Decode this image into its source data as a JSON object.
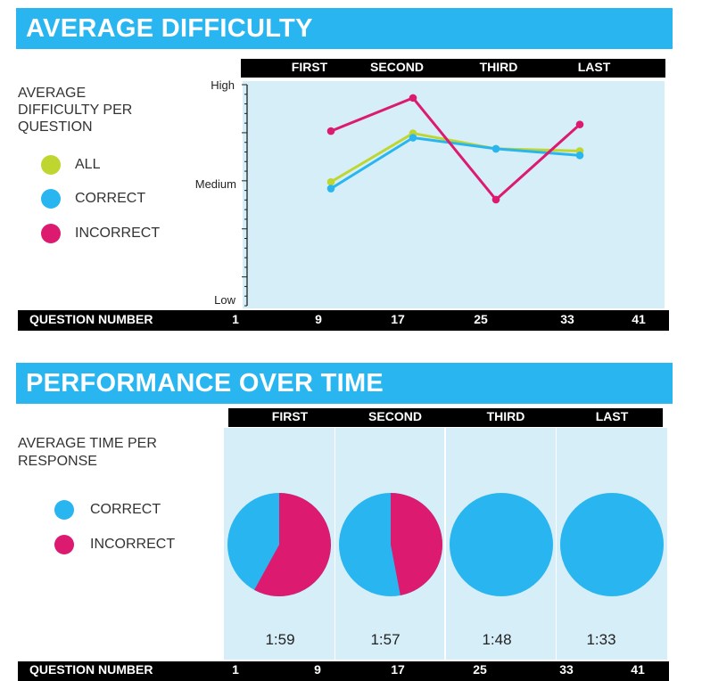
{
  "colors": {
    "all": "#bfd630",
    "correct": "#29b6f0",
    "incorrect": "#dc1b70",
    "panel": "#d5eef8",
    "banner": "#29b6f0"
  },
  "difficulty": {
    "title": "AVERAGE DIFFICULTY",
    "label_line1": "AVERAGE",
    "label_line2": "DIFFICULTY PER",
    "label_line3": "QUESTION",
    "quarter_headers": [
      "FIRST",
      "SECOND",
      "THIRD",
      "LAST"
    ],
    "question_number_label": "QUESTION NUMBER",
    "question_numbers": [
      "1",
      "9",
      "17",
      "25",
      "33",
      "41"
    ],
    "legend": [
      {
        "key": "all",
        "label": "ALL"
      },
      {
        "key": "correct",
        "label": "CORRECT"
      },
      {
        "key": "incorrect",
        "label": "INCORRECT"
      }
    ]
  },
  "performance": {
    "title": "PERFORMANCE OVER TIME",
    "label_line1": "AVERAGE TIME PER",
    "label_line2": "RESPONSE",
    "quarter_headers": [
      "FIRST",
      "SECOND",
      "THIRD",
      "LAST"
    ],
    "question_number_label": "QUESTION NUMBER",
    "question_numbers": [
      "1",
      "9",
      "17",
      "25",
      "33",
      "41"
    ],
    "legend": [
      {
        "key": "correct",
        "label": "CORRECT"
      },
      {
        "key": "incorrect",
        "label": "INCORRECT"
      }
    ],
    "times": [
      "1:59",
      "1:57",
      "1:48",
      "1:33"
    ]
  },
  "chart_data": [
    {
      "type": "line",
      "title": "AVERAGE DIFFICULTY",
      "ylabel": "AVERAGE DIFFICULTY PER QUESTION",
      "xlabel": "QUESTION NUMBER",
      "y_ticks": [
        "Low",
        "Medium",
        "High"
      ],
      "ylim": [
        0,
        1
      ],
      "categories": [
        "FIRST",
        "SECOND",
        "THIRD",
        "LAST"
      ],
      "series": [
        {
          "name": "ALL",
          "values": [
            0.56,
            0.78,
            0.71,
            0.7
          ]
        },
        {
          "name": "CORRECT",
          "values": [
            0.53,
            0.76,
            0.71,
            0.68
          ]
        },
        {
          "name": "INCORRECT",
          "values": [
            0.79,
            0.94,
            0.48,
            0.82
          ]
        }
      ]
    },
    {
      "type": "pie",
      "title": "PERFORMANCE OVER TIME",
      "categories": [
        "FIRST",
        "SECOND",
        "THIRD",
        "LAST"
      ],
      "series": [
        {
          "name": "CORRECT",
          "values": [
            0.42,
            0.53,
            1.0,
            1.0
          ]
        },
        {
          "name": "INCORRECT",
          "values": [
            0.58,
            0.47,
            0.0,
            0.0
          ]
        }
      ],
      "labels": [
        "1:59",
        "1:57",
        "1:48",
        "1:33"
      ]
    }
  ]
}
